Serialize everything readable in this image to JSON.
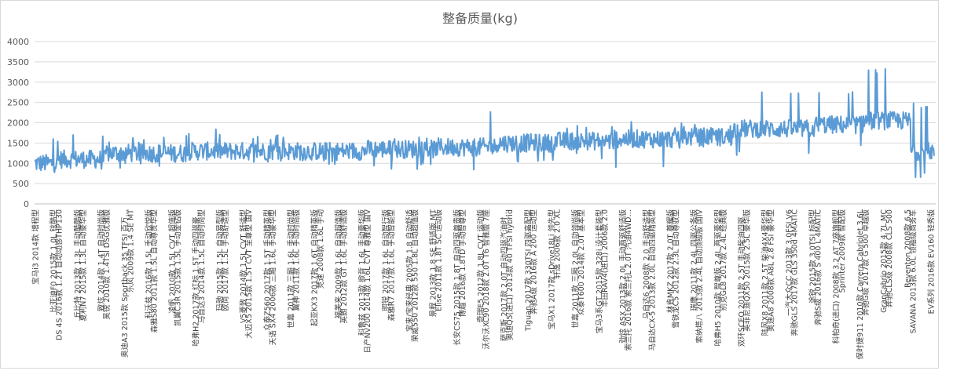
{
  "chart_data": {
    "type": "line",
    "title": "整备质量(kg)",
    "ylim": [
      0,
      4000
    ],
    "yticks": [
      0,
      500,
      1000,
      1500,
      2000,
      2500,
      3000,
      3500,
      4000
    ],
    "grid": true,
    "legend": "none",
    "series_color": "#5b9bd5",
    "categories": [
      "宝马i3 2014款 增程型",
      "比亚迪F0 2015款 1.0L 铉酷型",
      "DS 4S 2016款 1.2T 自动动感THP130",
      "丘比特 2013款 1.3L 手动酷酷版",
      "夏利N7 2015款 1.3L 自动豪华型",
      "致炫 2014款 1.4T 自动时尚版",
      "昊锐 2010款 1.4TSI DSG优雅版",
      "奥迪A3 2015款 Sportback 35 TFSI 百万…",
      "乐风 2009款 1.4 SE MT",
      "科沃兹 2016款 1.5L 手动欣悦版",
      "森雅S80 2011款 1.5L 自动尊贵华型",
      "凌帆 2010款 1.5L CVT 超值版",
      "凯翼C3R 2015款 1.5L 手动金钻版",
      "哈弗H2 2017款 红标 1.5T 手动四驱豪…",
      "马自达3 2014款 1.5L 自动时尚型",
      "玛驰 2015款 1.5L 自动易型版",
      "欧尚 2017款 1.5L 手动舒适型",
      "V5菱致 2014款 1.5L CVT 舒适型",
      "大迈X5 2015款 1.5T CVT 至尊型 国V",
      "众泰Z560 2017款 1.5T 手动精英型",
      "天语 SX4 2006款 三厢 1.6L 手动豪华型",
      "世嘉 2011款 三厢 1.6L 手动时尚型",
      "翼神 2011款 1.6L 手动时尚版",
      "起亚KX3 2017款 1.6T 自动精英版",
      "竞速 2008款 1.6L 手动",
      "福美来 2009款 1.6L 自动超值版",
      "英朗 2012款 GT 1.6L 手动舒适版",
      "科鲁兹 2013款 掀背 1.6L 手动豪华版",
      "日产NV200 2014款 1.6L CVT 尊雅型 国V",
      "明锐 2017款 1.6L 自动智行版",
      "森雅R7 2017款 1.6L 手动智能型",
      "宝来/宝来经典 2005款 1.8 自动舒适",
      "荣威550 2012款 550 1.8L 自动超值版",
      "景程 2013款 1.8 SE 舒适版 MT",
      "Elise 2011款 1.8T SC 运动版",
      "长安CS75 2015款 1.8T 自动四驱尊贵版",
      "博越 2016款 1.8TD 手动智尊型",
      "奇瑞E5 2012款 1.8L CVT 运动版",
      "沃尔沃XC90 2018款 2.0T T6 智雅版 7座",
      "萨克斯 2017款 2.0T 自动四驱汽油时…",
      "奥迪Q5(进口) 2013款 40 TFSI hybrid",
      "Tiguan 2017款 330TSI 四驱高配型",
      "奔驰A级 2016款 A 200 运动型",
      "宝马X1 2017款 sDrive18Li 领先型",
      "轩逸 2006款 2.0 XL",
      "世嘉 2011款 三厢 2.0L 自动领尚版",
      "众泰T600 2014款 2.0T 基本型",
      "宝马3系GT 2015款 328i 设计套装型",
      "丰田RAV4(进口) 2006款 2.0",
      "劲炫 ASX 2013款 2.0L 手动两驱舒适版",
      "索兰托 2016款 索兰托L 2.0T 汽油4WD…",
      "马自达6 2008款 2.0 手动舒适型",
      "马自达CX-5 2013款 2.0L 自动四驱精英型",
      "林肯MKZ 2017款 2.0T 尊耀版",
      "雪铁龙C5 2012款 2.3L 自动尊驭型",
      "瑞鹰 2011款 2.4L 四驱公务版",
      "索纳塔八 2013款 2.4L 自动顶级版 国IV",
      "哈弗H5 2010款 智尊版 2.4L 两驱豪华型",
      "别克GL8 2017款 2.4L 经典版",
      "双环SCEO 2011款 2.5T 手动柴油四驱…",
      "英菲尼迪QX50 2015款 2.5L 豪华版",
      "陆风X8 2011款 2.5T 柴油4X4豪华型",
      "奥迪A8 2008款 A8L 2.8 FSI 豪华型",
      "一汽大众CC 2013款 3.0FSI V6",
      "奔驰GLS 2017款 GLS 350d 4MATIC",
      "途锐 2015款 3.0TSI 标配型",
      "奔驰S级 2016款 S 400 L 4MATIC",
      "科帕奇(进口) 2008款 3.2 AT 7座旗舰型",
      "Sprinter 2009款 智配版",
      "保时捷911 2010款 Carrera Cabriolet 3.6L",
      "奔驰G级 2017款 G 500 卓越版",
      "GranCabrio 2015款 4.7L MC",
      "奔驰CLS级 2008款 CLS 500",
      "Reventon 2008款 6.5",
      "SAVANA 2013款 6.0L 领袖级商务车",
      "EV系列 2016款 EV160 轻秀版"
    ],
    "segments": [
      {
        "from": "宝马i3 2014款 增程型",
        "min": 650,
        "base": 1000,
        "max": 1650
      },
      {
        "from": "DS 4S 2016款 1.2T 自动动感THP130",
        "min": 800,
        "base": 1100,
        "max": 1750
      },
      {
        "from": "昊锐 2010款 1.4TSI DSG优雅版",
        "min": 850,
        "base": 1250,
        "max": 1650
      },
      {
        "from": "科沃兹 2016款 1.5L 手动欣悦版",
        "min": 900,
        "base": 1250,
        "max": 1750
      },
      {
        "from": "哈弗H2 2017款 红标 1.5T 手动四驱豪…",
        "min": 950,
        "base": 1300,
        "max": 1900
      },
      {
        "from": "V5菱致 2014款 1.5L CVT 舒适型",
        "min": 950,
        "base": 1300,
        "max": 1700
      },
      {
        "from": "竞速 2008款 1.6L 手动",
        "min": 950,
        "base": 1300,
        "max": 1550
      },
      {
        "from": "日产NV200 2014款 1.6L CVT 尊雅型 国V",
        "min": 850,
        "base": 1350,
        "max": 1650
      },
      {
        "from": "Elise 2011款 1.8T SC 运动版",
        "min": 800,
        "base": 1400,
        "max": 2300
      },
      {
        "from": "萨克斯 2017款 2.0T 自动四驱汽油时…",
        "min": 950,
        "base": 1500,
        "max": 2600
      },
      {
        "from": "轩逸 2006款 2.0 XL",
        "min": 1100,
        "base": 1550,
        "max": 2000
      },
      {
        "from": "劲炫 ASX 2013款 2.0L 手动两驱舒适版",
        "min": 900,
        "base": 1600,
        "max": 2150
      },
      {
        "from": "雪铁龙C5 2012款 2.3L 自动尊驭型",
        "min": 1300,
        "base": 1650,
        "max": 2000
      },
      {
        "from": "双环SCEO 2011款 2.5T 手动柴油四驱…",
        "min": 1200,
        "base": 1850,
        "max": 2900
      },
      {
        "from": "奔驰S级 2016款 S 400 L 4MATIC",
        "min": 1400,
        "base": 1950,
        "max": 2900
      },
      {
        "from": "奔驰G级 2017款 G 500 卓越版",
        "min": 1200,
        "base": 2050,
        "max": 3350
      },
      {
        "from": "SAVANA 2013款 6.0L 领袖级商务车",
        "min": 650,
        "base": 1300,
        "max": 2500
      }
    ]
  }
}
